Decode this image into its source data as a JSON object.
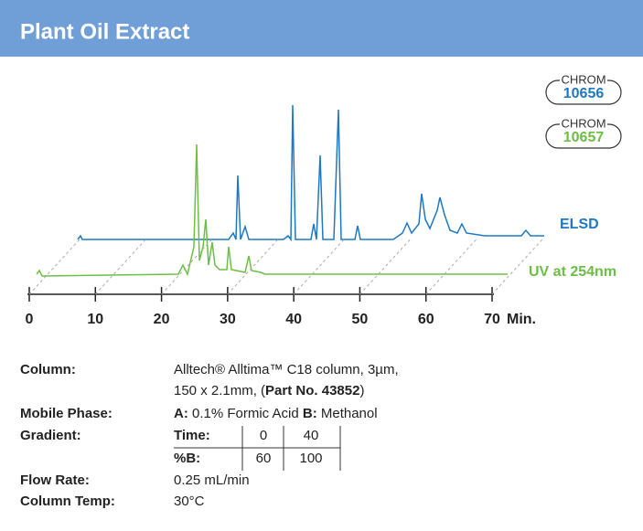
{
  "header": {
    "title": "Plant Oil Extract"
  },
  "badges": [
    {
      "top": "CHROM",
      "number": "10656",
      "color": "#1f78c1"
    },
    {
      "top": "CHROM",
      "number": "10657",
      "color": "#6cbf44"
    }
  ],
  "chromatogram": {
    "xlim": [
      0,
      70
    ],
    "xticks": [
      0,
      10,
      20,
      30,
      40,
      50,
      60,
      70
    ],
    "unit": "Min.",
    "traces": [
      {
        "name": "ELSD",
        "color": "#1f78c1"
      },
      {
        "name": "UV at 254nm",
        "color": "#6cbf44"
      }
    ]
  },
  "conditions": {
    "column": {
      "label": "Column:",
      "line1": "Alltech® Alltima™ C18 column, 3µm,",
      "line2_pre": "150 x 2.1mm, (",
      "line2_bold": "Part No. 43852",
      "line2_post": ")"
    },
    "mobile_phase": {
      "label": "Mobile Phase:",
      "a_label": "A:",
      "a": " 0.1% Formic Acid ",
      "b_label": "B:",
      "b": " Methanol"
    },
    "gradient": {
      "label": "Gradient:",
      "rows": [
        [
          "Time:",
          "0",
          "40"
        ],
        [
          "%B:",
          "60",
          "100"
        ]
      ]
    },
    "flow_rate": {
      "label": "Flow Rate:",
      "value": "0.25 mL/min"
    },
    "column_temp": {
      "label": "Column Temp:",
      "value": "30°C"
    }
  }
}
